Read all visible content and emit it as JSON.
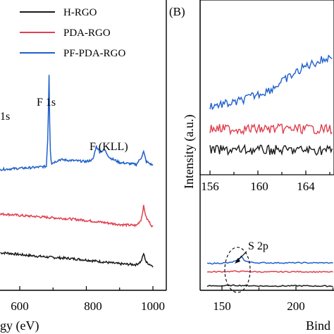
{
  "chart_data": [
    {
      "panel": "A",
      "type": "line",
      "xlabel": "Binding Energy (eV)",
      "ylabel": "",
      "xlim": [
        500,
        1000
      ],
      "x_ticks": [
        600,
        800,
        1000
      ],
      "legend": {
        "placement": "top-right"
      },
      "series": [
        {
          "name": "H-RGO",
          "color": "#1a1a1a",
          "x": [
            500,
            560,
            600,
            650,
            700,
            750,
            800,
            850,
            900,
            950,
            965,
            972,
            980,
            1000
          ],
          "y": [
            1.0,
            0.98,
            0.9,
            0.82,
            0.75,
            0.7,
            0.62,
            0.52,
            0.42,
            0.38,
            0.55,
            0.95,
            0.5,
            0.3
          ]
        },
        {
          "name": "PDA-RGO",
          "color": "#e0404f",
          "x": [
            500,
            560,
            600,
            650,
            700,
            750,
            800,
            850,
            900,
            950,
            965,
            972,
            980,
            1000
          ],
          "y": [
            3.0,
            2.98,
            2.92,
            2.86,
            2.8,
            2.74,
            2.66,
            2.56,
            2.45,
            2.4,
            2.7,
            3.4,
            2.8,
            2.3
          ]
        },
        {
          "name": "PF-PDA-RGO",
          "color": "#1f5fcc",
          "x": [
            500,
            550,
            600,
            650,
            680,
            685,
            688,
            691,
            695,
            720,
            760,
            800,
            820,
            830,
            840,
            855,
            870,
            900,
            950,
            965,
            972,
            980,
            1000
          ],
          "y": [
            5.3,
            5.3,
            5.35,
            5.4,
            5.45,
            7.2,
            10.2,
            6.5,
            5.6,
            5.8,
            5.75,
            5.7,
            5.8,
            6.5,
            6.2,
            6.3,
            5.9,
            5.65,
            5.55,
            5.9,
            6.2,
            5.7,
            5.5
          ]
        }
      ],
      "annotations": [
        "1s",
        "F 1s",
        "F (KLL)"
      ]
    },
    {
      "panel": "B",
      "type": "line",
      "title": "(B)",
      "xlabel": "Binding Energy (eV)",
      "ylabel": "Intensity (a.u.)",
      "xlim": [
        140,
        255
      ],
      "x_ticks": [
        150,
        200
      ],
      "series": [
        {
          "name": "H-RGO",
          "color": "#1a1a1a",
          "x": [
            140,
            160,
            180,
            200,
            220,
            240,
            255
          ],
          "y": [
            0.5,
            0.55,
            0.5,
            0.52,
            0.5,
            0.5,
            0.5
          ]
        },
        {
          "name": "PDA-RGO",
          "color": "#e0404f",
          "x": [
            140,
            160,
            180,
            200,
            220,
            240,
            255
          ],
          "y": [
            1.5,
            1.55,
            1.5,
            1.52,
            1.5,
            1.5,
            1.5
          ]
        },
        {
          "name": "PF-PDA-RGO",
          "color": "#1f5fcc",
          "x": [
            140,
            155,
            160,
            163,
            165,
            168,
            175,
            200,
            220,
            240,
            255
          ],
          "y": [
            2.1,
            2.15,
            2.3,
            2.6,
            2.35,
            2.2,
            2.15,
            2.15,
            2.15,
            2.15,
            2.15
          ]
        }
      ],
      "annotations": [
        "S 2p"
      ],
      "inset": {
        "xlim": [
          156,
          167
        ],
        "x_ticks": [
          156,
          160,
          164
        ],
        "series": [
          {
            "name": "PF-PDA-RGO",
            "color": "#1f5fcc",
            "base": [
              0.0,
              0.05,
              0.3,
              0.75,
              1.0
            ],
            "base_x": [
              156,
              158,
              161,
              164,
              167
            ]
          },
          {
            "name": "PDA-RGO",
            "color": "#e0404f",
            "base": [
              0.0,
              0.0,
              0.0,
              0.0,
              0.0
            ],
            "base_x": [
              156,
              158,
              161,
              164,
              167
            ]
          },
          {
            "name": "H-RGO",
            "color": "#1a1a1a",
            "base": [
              0.0,
              0.0,
              0.0,
              0.0,
              0.0
            ],
            "base_x": [
              156,
              158,
              161,
              164,
              167
            ]
          }
        ]
      }
    }
  ],
  "text": {
    "xlabel_a_visible": "gy (eV)",
    "xlabel_b_visible": "Bind",
    "annot_1s": "1s",
    "annot_f1s": "F 1s",
    "annot_fkll": "F (KLL)",
    "annot_s2p": "S 2p",
    "panel_b": "(B)",
    "ylabel_b": "Intensity (a.u.)",
    "tick_a_600": "600",
    "tick_a_800": "800",
    "tick_a_1000": "1000",
    "tick_a_left": "600",
    "tick_b_150": "150",
    "tick_b_200": "200",
    "inset_156": "156",
    "inset_160": "160",
    "inset_164": "164",
    "leg_h": "H-RGO",
    "leg_pda": "PDA-RGO",
    "leg_pf": "PF-PDA-RGO"
  }
}
